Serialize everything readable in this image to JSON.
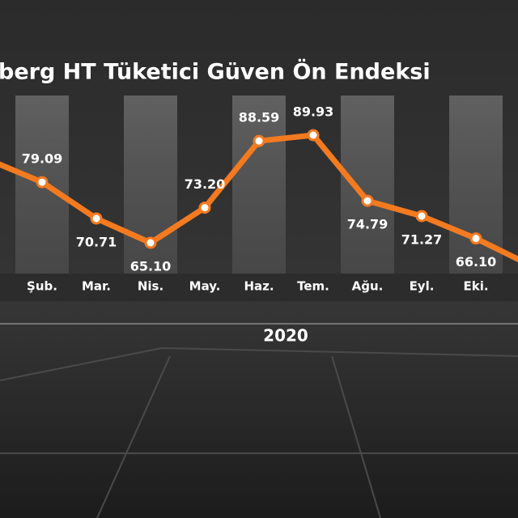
{
  "chart_data": {
    "type": "line",
    "title": "berg HT Tüketici Güven Ön Endeksi",
    "x_label": "2020",
    "categories": [
      "Şub.",
      "Mar.",
      "Nis.",
      "May.",
      "Haz.",
      "Tem.",
      "Ağu.",
      "Eyl.",
      "Eki."
    ],
    "series": [
      {
        "name": "Tüketici Güven Ön Endeksi",
        "color": "#f47a20",
        "values": [
          79.09,
          70.71,
          65.1,
          73.2,
          88.59,
          89.93,
          74.79,
          71.27,
          66.1
        ],
        "value_labels": [
          "79.09",
          "70.71",
          "65.10",
          "73.20",
          "88.59",
          "89.93",
          "74.79",
          "71.27",
          "66.10"
        ]
      }
    ]
  }
}
